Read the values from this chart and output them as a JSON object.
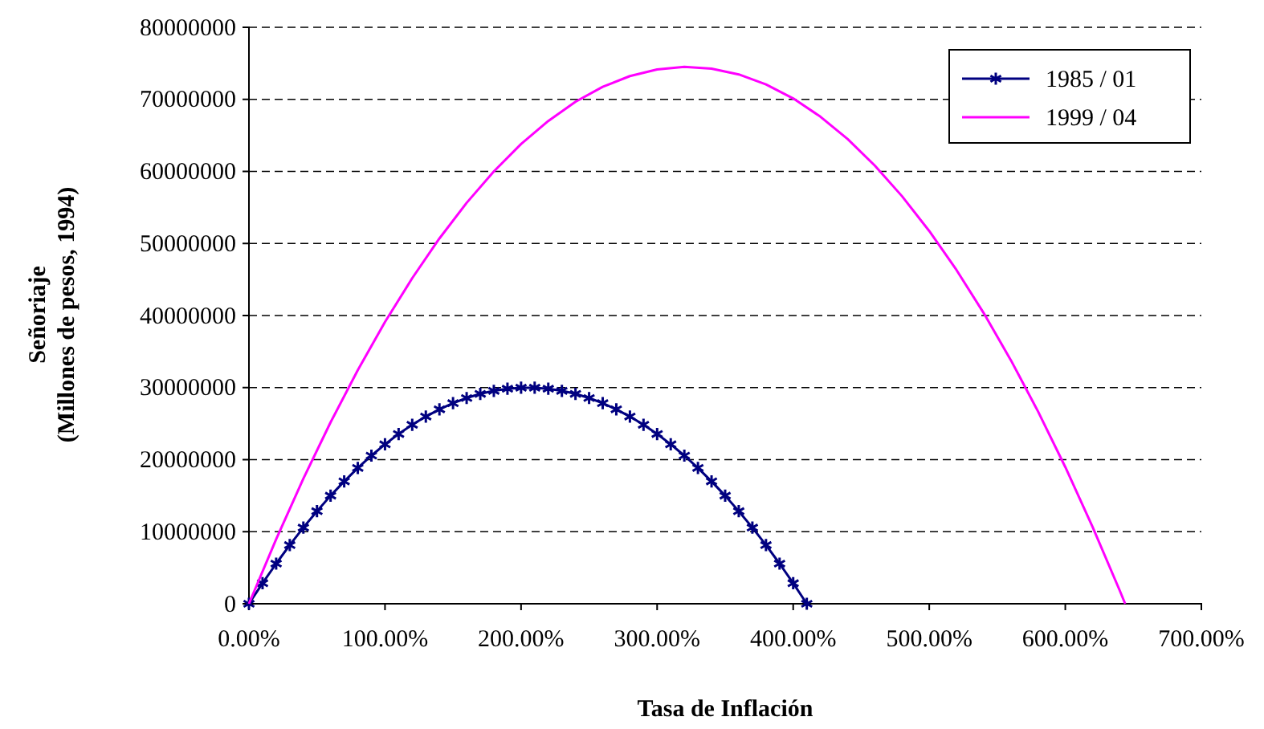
{
  "chart_data": {
    "type": "line",
    "xlabel": "Tasa de Inflación",
    "ylabel": "Señoriaje\n(Millones de pesos, 1994)",
    "xlim": [
      0,
      700
    ],
    "xticks": [
      {
        "value": 0,
        "label": "0.00%"
      },
      {
        "value": 100,
        "label": "100.00%"
      },
      {
        "value": 200,
        "label": "200.00%"
      },
      {
        "value": 300,
        "label": "300.00%"
      },
      {
        "value": 400,
        "label": "400.00%"
      },
      {
        "value": 500,
        "label": "500.00%"
      },
      {
        "value": 600,
        "label": "600.00%"
      },
      {
        "value": 700,
        "label": "700.00%"
      }
    ],
    "ylim": [
      0,
      80000000
    ],
    "yticks": [
      0,
      10000000,
      20000000,
      30000000,
      40000000,
      50000000,
      60000000,
      70000000,
      80000000
    ],
    "grid": "y",
    "legend": "top right",
    "series": [
      {
        "name": "1985 / 01",
        "color": "#000080",
        "marker": "cross",
        "x": [
          0,
          10,
          20,
          30,
          40,
          50,
          60,
          70,
          80,
          90,
          100,
          110,
          120,
          130,
          140,
          150,
          160,
          170,
          180,
          190,
          200,
          210,
          220,
          230,
          240,
          250,
          260,
          270,
          280,
          290,
          300,
          310,
          320,
          330,
          340,
          350,
          360,
          370,
          380,
          390,
          400,
          410
        ],
        "values": [
          0,
          2850000,
          5570000,
          8140000,
          10570000,
          12850000,
          15000000,
          16980000,
          18850000,
          20560000,
          22130000,
          23560000,
          24840000,
          25980000,
          26980000,
          27840000,
          28550000,
          29130000,
          29550000,
          29840000,
          29980000,
          29980000,
          29840000,
          29550000,
          29130000,
          28550000,
          27840000,
          26980000,
          25980000,
          24840000,
          23560000,
          22130000,
          20560000,
          18850000,
          16980000,
          15000000,
          12850000,
          10570000,
          8140000,
          5570000,
          2850000,
          0
        ]
      },
      {
        "name": "1999 / 04",
        "color": "#ff00ff",
        "marker": "none",
        "x": [
          0,
          20,
          40,
          60,
          80,
          100,
          120,
          140,
          160,
          180,
          200,
          220,
          240,
          260,
          280,
          300,
          320,
          340,
          360,
          380,
          400,
          420,
          440,
          460,
          480,
          500,
          520,
          540,
          560,
          580,
          600,
          620,
          640,
          644
        ],
        "values": [
          0,
          8960000,
          17360000,
          25180000,
          32420000,
          39100000,
          45180000,
          50700000,
          55640000,
          60000000,
          63800000,
          67000000,
          69670000,
          71740000,
          73230000,
          74150000,
          74500000,
          74270000,
          73460000,
          72080000,
          70130000,
          67600000,
          64500000,
          60810000,
          56560000,
          51730000,
          46330000,
          40350000,
          33800000,
          26670000,
          18970000,
          10690000,
          1840000,
          0
        ]
      }
    ]
  }
}
